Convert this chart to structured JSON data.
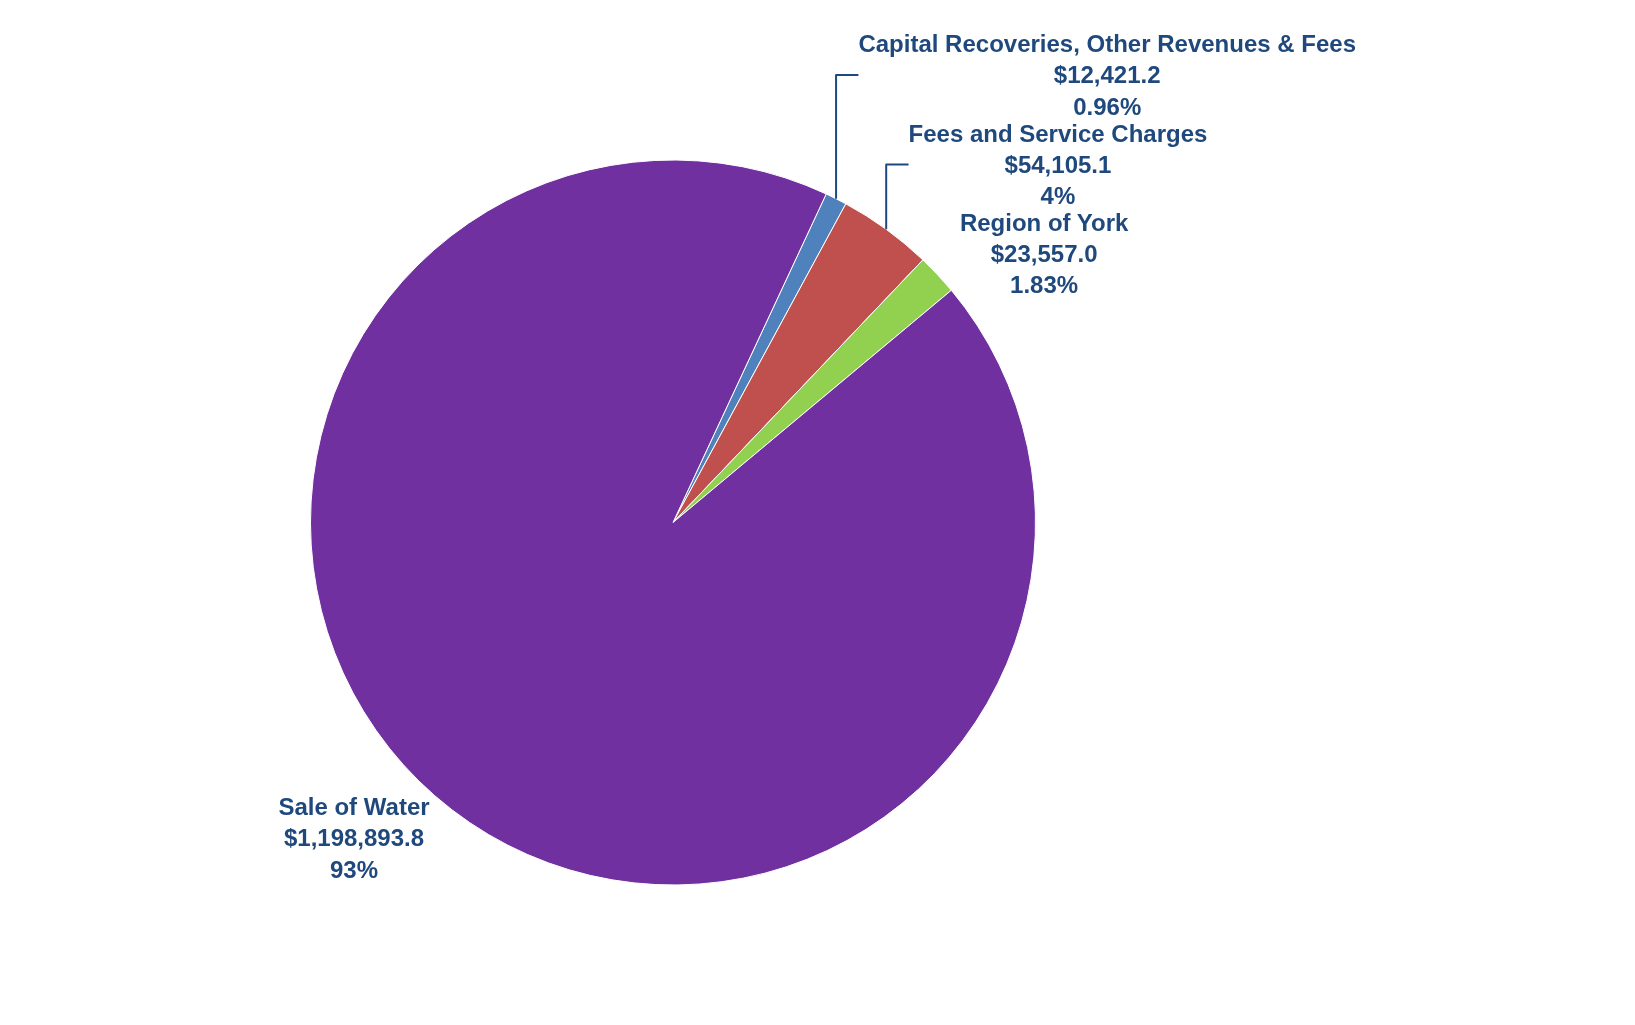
{
  "chart_data": {
    "type": "pie",
    "categories": [
      "Capital Recoveries, Other Revenues & Fees",
      "Fees and Service Charges",
      "Region of York",
      "Sale of Water"
    ],
    "values": [
      12421.2,
      54105.1,
      23557.0,
      1198893.8
    ],
    "value_labels": [
      "$12,421.2\n0.96%",
      "$54,105.1\n4%",
      "$23,557.0\n1.83%",
      "$1,198,893.8\n93%"
    ],
    "colors": [
      "#4f81bd",
      "#c0504d",
      "#92d050",
      "#7030a0"
    ],
    "legend": false
  }
}
